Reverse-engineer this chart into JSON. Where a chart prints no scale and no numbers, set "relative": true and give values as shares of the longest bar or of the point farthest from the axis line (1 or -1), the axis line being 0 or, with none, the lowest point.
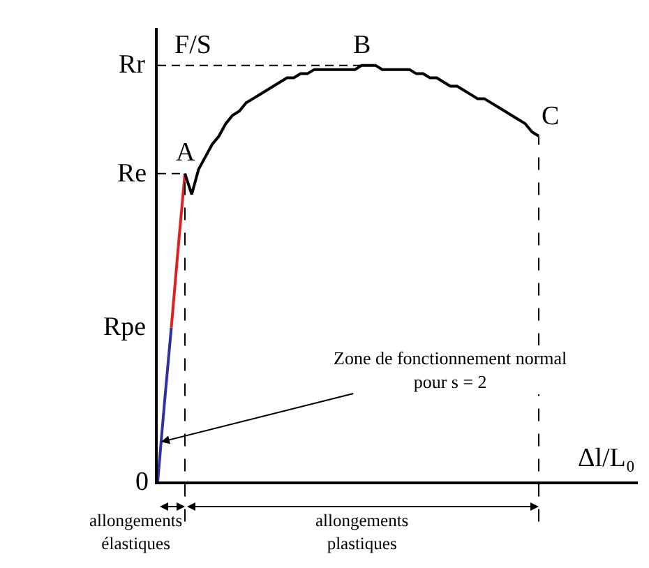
{
  "chart_data": {
    "type": "line",
    "xlabel": "Δl/L₀",
    "ylabel": "F/S",
    "categories": [
      null,
      null,
      null,
      null,
      null,
      null,
      null,
      null,
      null,
      null,
      null,
      null,
      null,
      null,
      null,
      null,
      null,
      null,
      null,
      null,
      null,
      null,
      null,
      null,
      null,
      null,
      null,
      null,
      null,
      null,
      null,
      null,
      null,
      null,
      null,
      null,
      null,
      null,
      null,
      null,
      null,
      null,
      null,
      null,
      null,
      null,
      null,
      null,
      null,
      null,
      null,
      null,
      null,
      null,
      null,
      null,
      null
    ],
    "relative": true,
    "series": [
      {
        "color": "#3030a0",
        "values": [
          0,
          0.19,
          0.37,
          null,
          null,
          null,
          null,
          null,
          null,
          null,
          null,
          null,
          null,
          null,
          null,
          null,
          null,
          null,
          null,
          null,
          null,
          null,
          null,
          null,
          null,
          null,
          null,
          null,
          null,
          null,
          null,
          null,
          null,
          null,
          null,
          null,
          null,
          null,
          null,
          null,
          null,
          null,
          null,
          null,
          null,
          null,
          null,
          null,
          null,
          null,
          null,
          null,
          null,
          null,
          null,
          null,
          null
        ]
      },
      {
        "color": "#e02020",
        "values": [
          null,
          null,
          0.37,
          0.56,
          0.74,
          null,
          null,
          null,
          null,
          null,
          null,
          null,
          null,
          null,
          null,
          null,
          null,
          null,
          null,
          null,
          null,
          null,
          null,
          null,
          null,
          null,
          null,
          null,
          null,
          null,
          null,
          null,
          null,
          null,
          null,
          null,
          null,
          null,
          null,
          null,
          null,
          null,
          null,
          null,
          null,
          null,
          null,
          null,
          null,
          null,
          null,
          null,
          null,
          null,
          null,
          null,
          null
        ]
      },
      {
        "color": "#000000",
        "values": [
          null,
          null,
          null,
          null,
          0.74,
          0.69,
          0.75,
          0.78,
          0.81,
          0.83,
          0.86,
          0.88,
          0.89,
          0.91,
          0.92,
          0.93,
          0.94,
          0.95,
          0.96,
          0.97,
          0.97,
          0.98,
          0.98,
          0.99,
          0.99,
          0.99,
          0.99,
          0.99,
          0.99,
          0.99,
          1,
          1,
          1,
          0.99,
          0.99,
          0.99,
          0.99,
          0.99,
          0.98,
          0.98,
          0.97,
          0.97,
          0.96,
          0.95,
          0.95,
          0.94,
          0.93,
          0.92,
          0.92,
          0.91,
          0.9,
          0.89,
          0.88,
          0.87,
          0.86,
          0.84,
          0.83
        ]
      }
    ],
    "ref_lines": [
      {
        "axis": "y",
        "value": 1,
        "label": "Rr",
        "line_style": "dashed",
        "color": "#000000"
      },
      {
        "axis": "y",
        "value": 0.74,
        "label": "Re",
        "line_style": "dashed",
        "color": "#000000"
      }
    ],
    "annotations": [
      "Rpe",
      "0",
      "A",
      "B",
      "C",
      "Zone de fonctionnement normal\npour s = 2",
      "allongements\nélastiques",
      "allongements\nplastiques"
    ]
  }
}
